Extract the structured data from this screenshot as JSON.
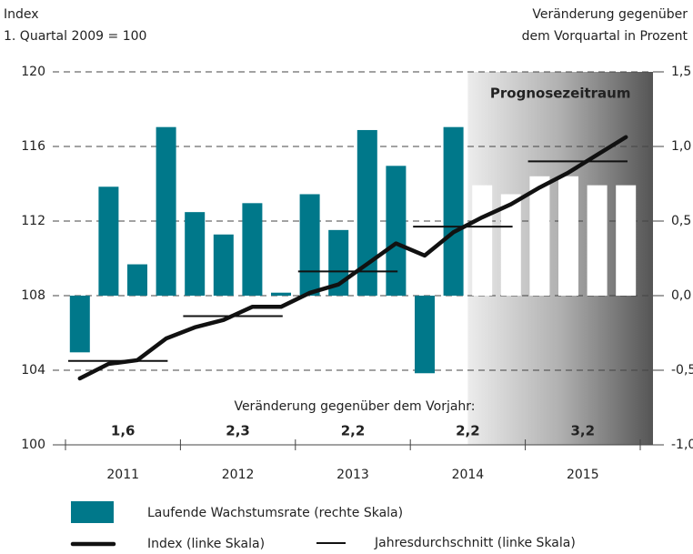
{
  "chart_data": {
    "type": "bar-line",
    "y_label": [
      "Index",
      "1. Quartal 2009 = 100"
    ],
    "y2_label": [
      "Veränderung gegenüber",
      "dem Vorquartal in Prozent"
    ],
    "categories": [
      "2011",
      "2012",
      "2013",
      "2014",
      "2015"
    ],
    "ylim": [
      100,
      120
    ],
    "yticks": [
      100,
      104,
      108,
      112,
      116,
      120
    ],
    "y2lim": [
      -1.0,
      1.5
    ],
    "y2ticks": [
      {
        "value": -1.0,
        "label": "-1,0"
      },
      {
        "value": -0.5,
        "label": "-0,5"
      },
      {
        "value": 0.0,
        "label": "0,0"
      },
      {
        "value": 0.5,
        "label": "0,5"
      },
      {
        "value": 1.0,
        "label": "1,0"
      },
      {
        "value": 1.5,
        "label": "1,5"
      }
    ],
    "grid": true,
    "forecast_label": "Prognosezeitraum",
    "series": [
      {
        "name": "Laufende Wachstumsrate (rechte Skala)",
        "type": "bar",
        "axis": "y2",
        "color": "#00788a",
        "forecast_color": "#ffffff",
        "values": [
          [
            -0.38,
            0.73,
            0.21,
            1.13
          ],
          [
            0.56,
            0.41,
            0.62,
            0.02
          ],
          [
            0.68,
            0.44,
            1.11,
            0.87
          ],
          [
            -0.52,
            1.13,
            0.74,
            0.68
          ],
          [
            0.8,
            0.8,
            0.74,
            0.74
          ]
        ],
        "forecast": [
          [
            false,
            false,
            false,
            false
          ],
          [
            false,
            false,
            false,
            false
          ],
          [
            false,
            false,
            false,
            false
          ],
          [
            false,
            false,
            true,
            true
          ],
          [
            true,
            true,
            true,
            true
          ]
        ]
      },
      {
        "name": "Index (linke Skala)",
        "type": "line",
        "color": "#111111",
        "values": [
          [
            103.56,
            104.34,
            104.54,
            105.7
          ],
          [
            106.3,
            106.7,
            107.4,
            107.4
          ],
          [
            108.15,
            108.6,
            109.7,
            110.8
          ],
          [
            110.15,
            111.4,
            112.2,
            112.9
          ],
          [
            113.8,
            114.6,
            115.55,
            116.5
          ]
        ]
      },
      {
        "name": "Jahresdurchschnitt (linke Skala)",
        "type": "step",
        "color": "#111111",
        "values": [
          104.5,
          106.9,
          109.3,
          111.7,
          115.2
        ]
      }
    ],
    "annual_change": {
      "label": "Veränderung gegenüber dem Vorjahr:",
      "values": [
        1.6,
        2.3,
        2.2,
        2.2,
        3.2
      ],
      "value_labels": [
        "1,6",
        "2,3",
        "2,2",
        "2,2",
        "3,2"
      ]
    }
  }
}
